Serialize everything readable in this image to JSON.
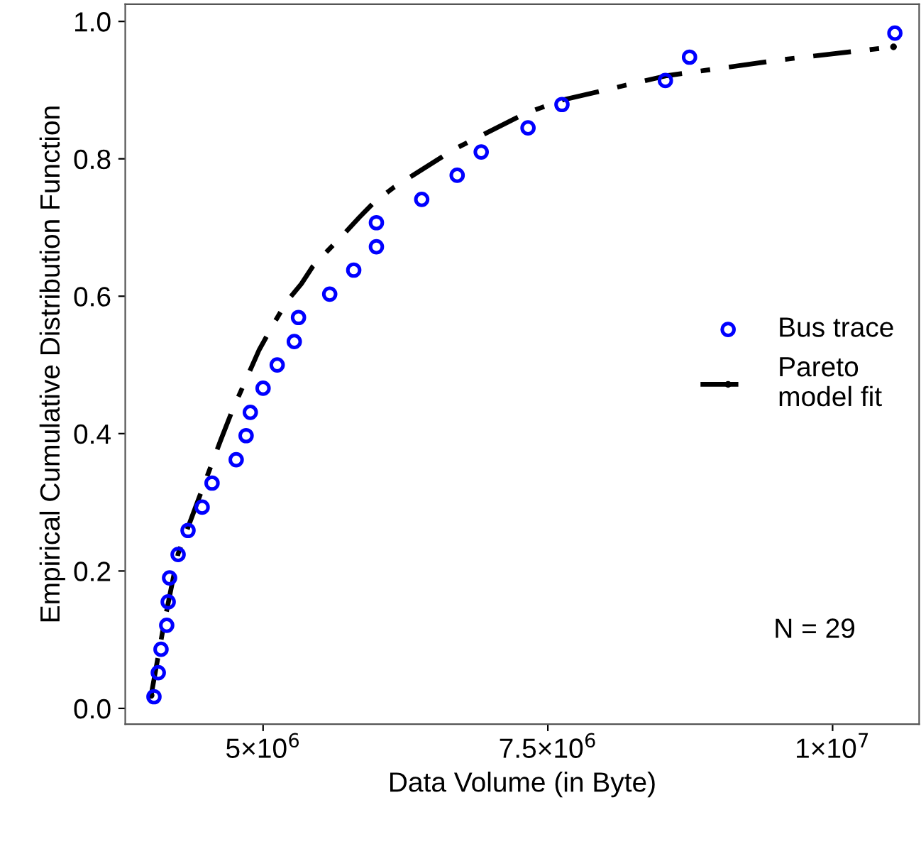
{
  "chart_data": {
    "type": "scatter",
    "xlabel": "Data Volume (in Byte)",
    "ylabel": "Empirical Cumulative Distribution Function",
    "xlim": [
      3790000,
      10760000
    ],
    "ylim": [
      -0.023,
      1.025
    ],
    "xticks": [
      {
        "value": 5000000,
        "label": "5×10$^{6}$"
      },
      {
        "value": 7500000,
        "label": "7.5×10$^{6}$"
      },
      {
        "value": 10000000,
        "label": "1×10$^{7}$"
      }
    ],
    "yticks": [
      {
        "value": 0,
        "label": "0.0"
      },
      {
        "value": 0.2,
        "label": "0.2"
      },
      {
        "value": 0.4,
        "label": "0.4"
      },
      {
        "value": 0.6,
        "label": "0.6"
      },
      {
        "value": 0.8,
        "label": "0.8"
      },
      {
        "value": 1,
        "label": "1.0"
      }
    ],
    "grid": false,
    "legend": "right",
    "annotations": [
      "N = 29"
    ],
    "series": [
      {
        "name": "Bus trace",
        "marker": "circle",
        "color": "#0000ff",
        "x": [
          4042000,
          4080000,
          4104000,
          4154000,
          4167000,
          4179000,
          4254000,
          4341000,
          4465000,
          4552000,
          4764000,
          4851000,
          4888000,
          5000000,
          5124000,
          5274000,
          5311000,
          5585000,
          5796000,
          5995000,
          5995000,
          6393000,
          6704000,
          6915000,
          7326000,
          7624000,
          8532000,
          8744000,
          10547000
        ],
        "values": [
          0.017,
          0.052,
          0.086,
          0.121,
          0.155,
          0.19,
          0.224,
          0.259,
          0.293,
          0.328,
          0.362,
          0.397,
          0.431,
          0.466,
          0.5,
          0.534,
          0.569,
          0.603,
          0.638,
          0.672,
          0.707,
          0.741,
          0.776,
          0.81,
          0.845,
          0.879,
          0.914,
          0.948,
          0.983
        ]
      },
      {
        "name": "Pareto\nmodel fit",
        "type": "line",
        "marker": "none",
        "line_style": "dashdot",
        "color": "#000000",
        "x": [
          4017000,
          4129000,
          4254000,
          4502000,
          4627000,
          4726000,
          4851000,
          4963000,
          5100000,
          5211000,
          5336000,
          5435000,
          5560000,
          5684000,
          5846000,
          5970000,
          6144000,
          6679000,
          7301000,
          7637000,
          8545000,
          9540000,
          10535000
        ],
        "values": [
          0.019,
          0.122,
          0.225,
          0.335,
          0.39,
          0.432,
          0.479,
          0.521,
          0.562,
          0.593,
          0.618,
          0.643,
          0.665,
          0.686,
          0.715,
          0.736,
          0.758,
          0.814,
          0.866,
          0.886,
          0.921,
          0.944,
          0.963
        ]
      }
    ]
  }
}
